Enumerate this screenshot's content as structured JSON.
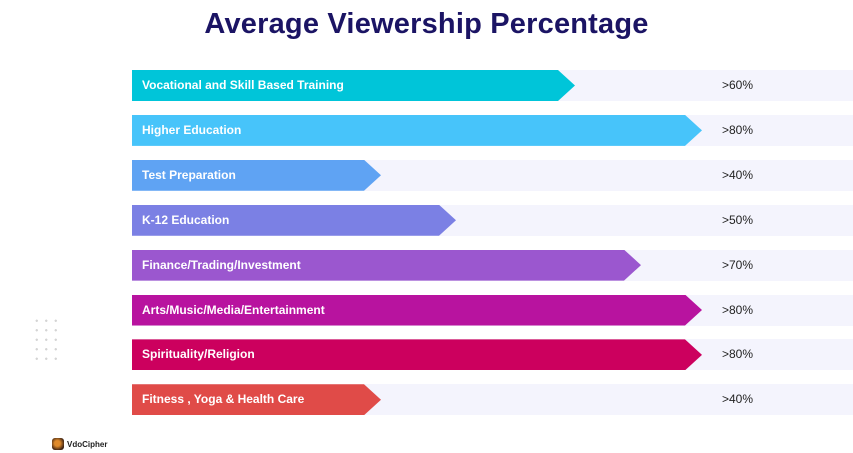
{
  "chart_data": {
    "type": "bar",
    "orientation": "horizontal",
    "title": "Average Viewership Percentage",
    "categories": [
      "Vocational and Skill Based Training",
      "Higher Education",
      "Test Preparation",
      "K-12 Education",
      "Finance/Trading/Investment",
      "Arts/Music/Media/Entertainment",
      "Spirituality/Religion",
      "Fitness , Yoga & Health Care"
    ],
    "values": [
      60,
      80,
      40,
      50,
      70,
      80,
      80,
      40
    ],
    "value_labels": [
      ">60%",
      ">80%",
      ">40%",
      ">50%",
      ">70%",
      ">80%",
      ">80%",
      ">40%"
    ],
    "colors": [
      "#00c5d9",
      "#47c4fa",
      "#5fa3f3",
      "#7b80e4",
      "#9b57cf",
      "#b8139f",
      "#cc005e",
      "#e04b48"
    ],
    "xlabel": "",
    "ylabel": "",
    "xlim": [
      0,
      100
    ]
  },
  "brand": {
    "name": "VdoCipher"
  }
}
